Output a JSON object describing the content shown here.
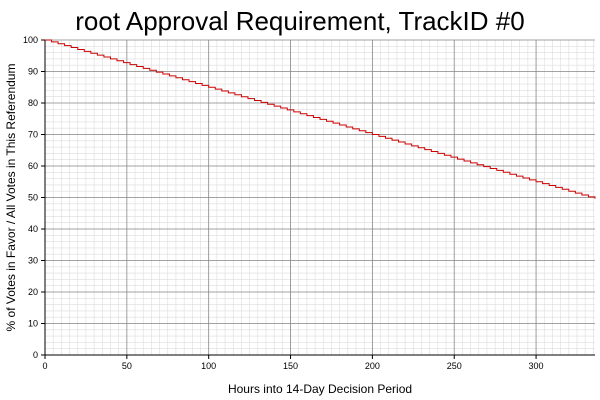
{
  "chart_data": {
    "type": "line",
    "title": "root Approval Requirement, TrackID #0",
    "xlabel": "Hours into 14-Day Decision Period",
    "ylabel": "% of Votes in Favor / All Votes in This Referendum",
    "xlim": [
      0,
      336
    ],
    "ylim": [
      0,
      100
    ],
    "x_ticks": [
      0,
      50,
      100,
      150,
      200,
      250,
      300
    ],
    "y_ticks": [
      0,
      10,
      20,
      30,
      40,
      50,
      60,
      70,
      80,
      90,
      100
    ],
    "x_minor_step": 5,
    "y_minor_step": 2,
    "grid": true,
    "line_color": "#cc0000",
    "series": [
      {
        "style": "step",
        "x": [
          0,
          336
        ],
        "y": [
          100,
          49.6
        ],
        "step_hours": 4
      }
    ]
  }
}
